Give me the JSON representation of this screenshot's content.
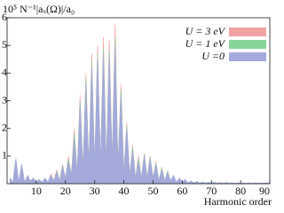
{
  "chart_data": {
    "type": "area",
    "ylabel": "10⁵ N⁻¹|aₓ(Ω)|/a₀",
    "xlabel": "Harmonic order",
    "xlim": [
      0,
      90
    ],
    "xticks": [
      10,
      20,
      30,
      40,
      50,
      60,
      70,
      80,
      90
    ],
    "ylim": [
      0,
      6
    ],
    "yticks": [
      1,
      2,
      3,
      4,
      5,
      6
    ],
    "legend": "upper right",
    "x": [
      1,
      2,
      3,
      4,
      5,
      6,
      7,
      8,
      9,
      10,
      11,
      12,
      13,
      14,
      15,
      16,
      17,
      18,
      19,
      20,
      21,
      22,
      23,
      24,
      25,
      26,
      27,
      28,
      29,
      30,
      31,
      32,
      33,
      34,
      35,
      36,
      37,
      38,
      39,
      40,
      41,
      42,
      43,
      44,
      45,
      46,
      47,
      48,
      49,
      50,
      51,
      52,
      53,
      54,
      55,
      56,
      57,
      58,
      59,
      60,
      61,
      62,
      63,
      64,
      65,
      66,
      67,
      68,
      69,
      70,
      71,
      72,
      73,
      74,
      75,
      76,
      77,
      78,
      79,
      80,
      81,
      82,
      83,
      84,
      85,
      86,
      87,
      88,
      89,
      90
    ],
    "series": [
      {
        "name": "U = 3 eV",
        "color": "#f2a3a3",
        "values": [
          0.2,
          0.05,
          0.9,
          0.05,
          0.7,
          0.05,
          0.3,
          0.1,
          0.2,
          0.05,
          0.15,
          0.05,
          0.2,
          0.05,
          0.35,
          0.1,
          0.5,
          0.1,
          0.7,
          0.2,
          1.0,
          0.3,
          2.0,
          0.4,
          3.2,
          0.5,
          4.0,
          0.6,
          4.7,
          0.7,
          5.0,
          0.7,
          5.3,
          0.7,
          5.2,
          0.8,
          5.8,
          0.6,
          3.6,
          0.4,
          2.2,
          0.3,
          1.4,
          0.2,
          1.0,
          0.2,
          1.1,
          0.2,
          1.0,
          0.2,
          0.8,
          0.1,
          0.6,
          0.1,
          0.45,
          0.1,
          0.3,
          0.05,
          0.2,
          0.05,
          0.15,
          0.03,
          0.1,
          0.03,
          0.08,
          0.02,
          0.06,
          0.02,
          0.05,
          0.02,
          0.05,
          0.02,
          0.04,
          0.02,
          0.04,
          0.02,
          0.03,
          0.02,
          0.03,
          0.02,
          0.03,
          0.02,
          0.03,
          0.02,
          0.03,
          0.02,
          0.03,
          0.02,
          0.03,
          0.02
        ]
      },
      {
        "name": "U = 1 eV",
        "color": "#86d49a",
        "values": [
          0.2,
          0.05,
          0.9,
          0.05,
          0.7,
          0.05,
          0.3,
          0.1,
          0.2,
          0.05,
          0.15,
          0.05,
          0.2,
          0.05,
          0.3,
          0.1,
          0.45,
          0.1,
          0.65,
          0.2,
          0.9,
          0.3,
          1.8,
          0.4,
          3.0,
          0.5,
          3.8,
          0.6,
          4.4,
          0.7,
          4.7,
          0.7,
          4.9,
          0.7,
          4.8,
          0.8,
          5.3,
          0.6,
          3.4,
          0.4,
          2.1,
          0.3,
          1.3,
          0.2,
          0.9,
          0.2,
          1.05,
          0.2,
          0.95,
          0.2,
          0.75,
          0.1,
          0.55,
          0.1,
          0.45,
          0.1,
          0.3,
          0.05,
          0.2,
          0.05,
          0.15,
          0.03,
          0.1,
          0.03,
          0.08,
          0.02,
          0.06,
          0.02,
          0.05,
          0.02,
          0.05,
          0.02,
          0.04,
          0.02,
          0.04,
          0.02,
          0.03,
          0.02,
          0.03,
          0.02,
          0.03,
          0.02,
          0.03,
          0.02,
          0.03,
          0.02,
          0.03,
          0.02,
          0.03,
          0.02
        ]
      },
      {
        "name": "U =0",
        "color": "#a3aadb",
        "values": [
          0.2,
          0.05,
          0.9,
          0.05,
          0.7,
          0.05,
          0.3,
          0.1,
          0.2,
          0.05,
          0.15,
          0.05,
          0.2,
          0.05,
          0.3,
          0.1,
          0.4,
          0.1,
          0.6,
          0.2,
          0.8,
          0.3,
          1.6,
          0.4,
          2.8,
          0.5,
          3.6,
          0.6,
          4.2,
          0.7,
          4.5,
          0.7,
          4.7,
          0.7,
          4.6,
          0.8,
          5.0,
          0.6,
          3.2,
          0.4,
          2.0,
          0.3,
          1.2,
          0.2,
          0.8,
          0.2,
          1.0,
          0.2,
          0.9,
          0.2,
          0.7,
          0.1,
          0.5,
          0.1,
          0.4,
          0.1,
          0.3,
          0.05,
          0.2,
          0.05,
          0.15,
          0.03,
          0.1,
          0.03,
          0.08,
          0.02,
          0.06,
          0.02,
          0.05,
          0.02,
          0.05,
          0.02,
          0.04,
          0.02,
          0.04,
          0.02,
          0.03,
          0.02,
          0.03,
          0.02,
          0.03,
          0.02,
          0.03,
          0.02,
          0.03,
          0.02,
          0.03,
          0.02,
          0.03,
          0.02
        ]
      }
    ]
  }
}
